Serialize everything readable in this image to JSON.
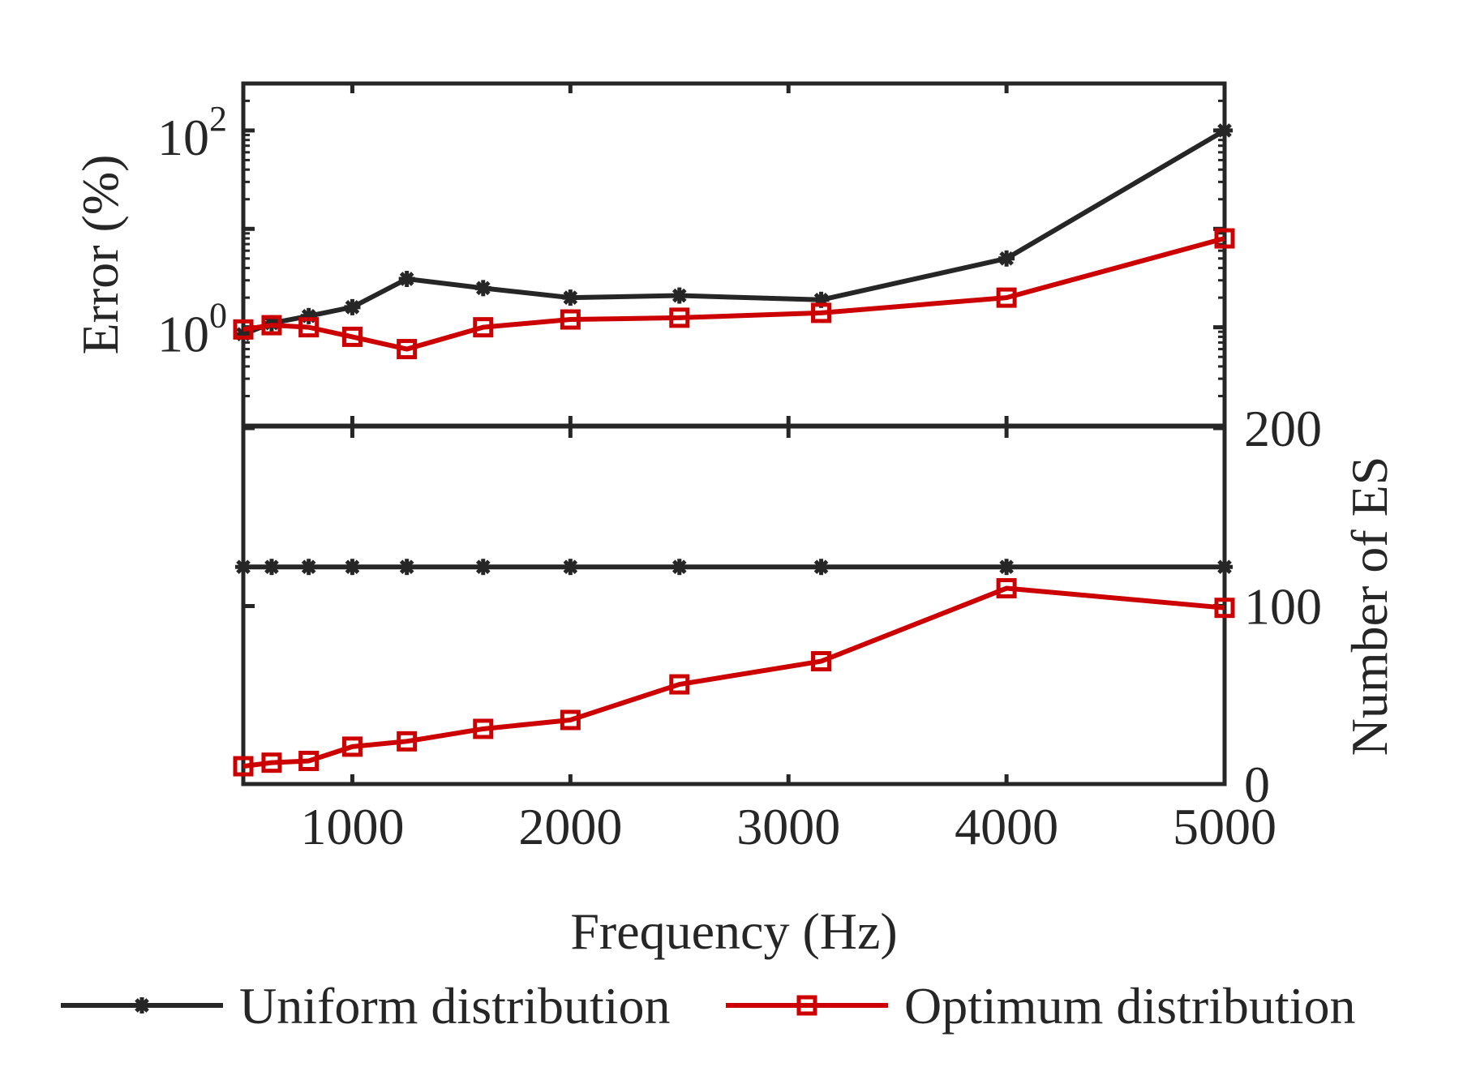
{
  "chart_data": {
    "type": "line",
    "x": [
      500,
      630,
      800,
      1000,
      1250,
      1600,
      2000,
      2500,
      3150,
      4000,
      5000
    ],
    "xlim": [
      500,
      5000
    ],
    "xticks": [
      1000,
      2000,
      3000,
      4000,
      5000
    ],
    "xtick_labels": [
      "1000",
      "2000",
      "3000",
      "4000",
      "5000"
    ],
    "xlabel": "Frequency (Hz)",
    "panels": [
      {
        "id": "error",
        "ylabel": "Error (%)",
        "yscale": "log",
        "ylim": [
          0.1,
          300
        ],
        "yticks": [
          1,
          100
        ],
        "ytick_base": "10",
        "ytick_exponents": [
          "0",
          "2"
        ],
        "y_axis_side": "left",
        "series": [
          {
            "name": "Uniform distribution",
            "color": "#262626",
            "marker": "asterisk",
            "values": [
              0.85,
              1.1,
              1.3,
              1.6,
              3.1,
              2.5,
              2.0,
              2.1,
              1.9,
              5.0,
              100
            ]
          },
          {
            "name": "Optimum distribution",
            "color": "#cc0000",
            "marker": "square",
            "values": [
              0.95,
              1.05,
              1.0,
              0.8,
              0.6,
              1.0,
              1.2,
              1.25,
              1.4,
              2.0,
              8.0
            ]
          }
        ]
      },
      {
        "id": "count",
        "ylabel": "Number of ES",
        "yscale": "linear",
        "ylim": [
          0,
          200
        ],
        "yticks": [
          0,
          100,
          200
        ],
        "ytick_labels": [
          "0",
          "100",
          "200"
        ],
        "y_axis_side": "right",
        "series": [
          {
            "name": "Uniform distribution",
            "color": "#262626",
            "marker": "asterisk",
            "values": [
              122,
              122,
              122,
              122,
              122,
              122,
              122,
              122,
              122,
              122,
              122
            ]
          },
          {
            "name": "Optimum distribution",
            "color": "#cc0000",
            "marker": "square",
            "values": [
              10,
              12,
              13,
              21,
              24,
              31,
              36,
              56,
              69,
              110,
              99
            ]
          }
        ]
      }
    ],
    "legend": {
      "position": "bottom",
      "entries": [
        {
          "label": "Uniform distribution",
          "color": "#262626",
          "marker": "asterisk"
        },
        {
          "label": "Optimum distribution",
          "color": "#cc0000",
          "marker": "square"
        }
      ]
    },
    "grid": false
  }
}
